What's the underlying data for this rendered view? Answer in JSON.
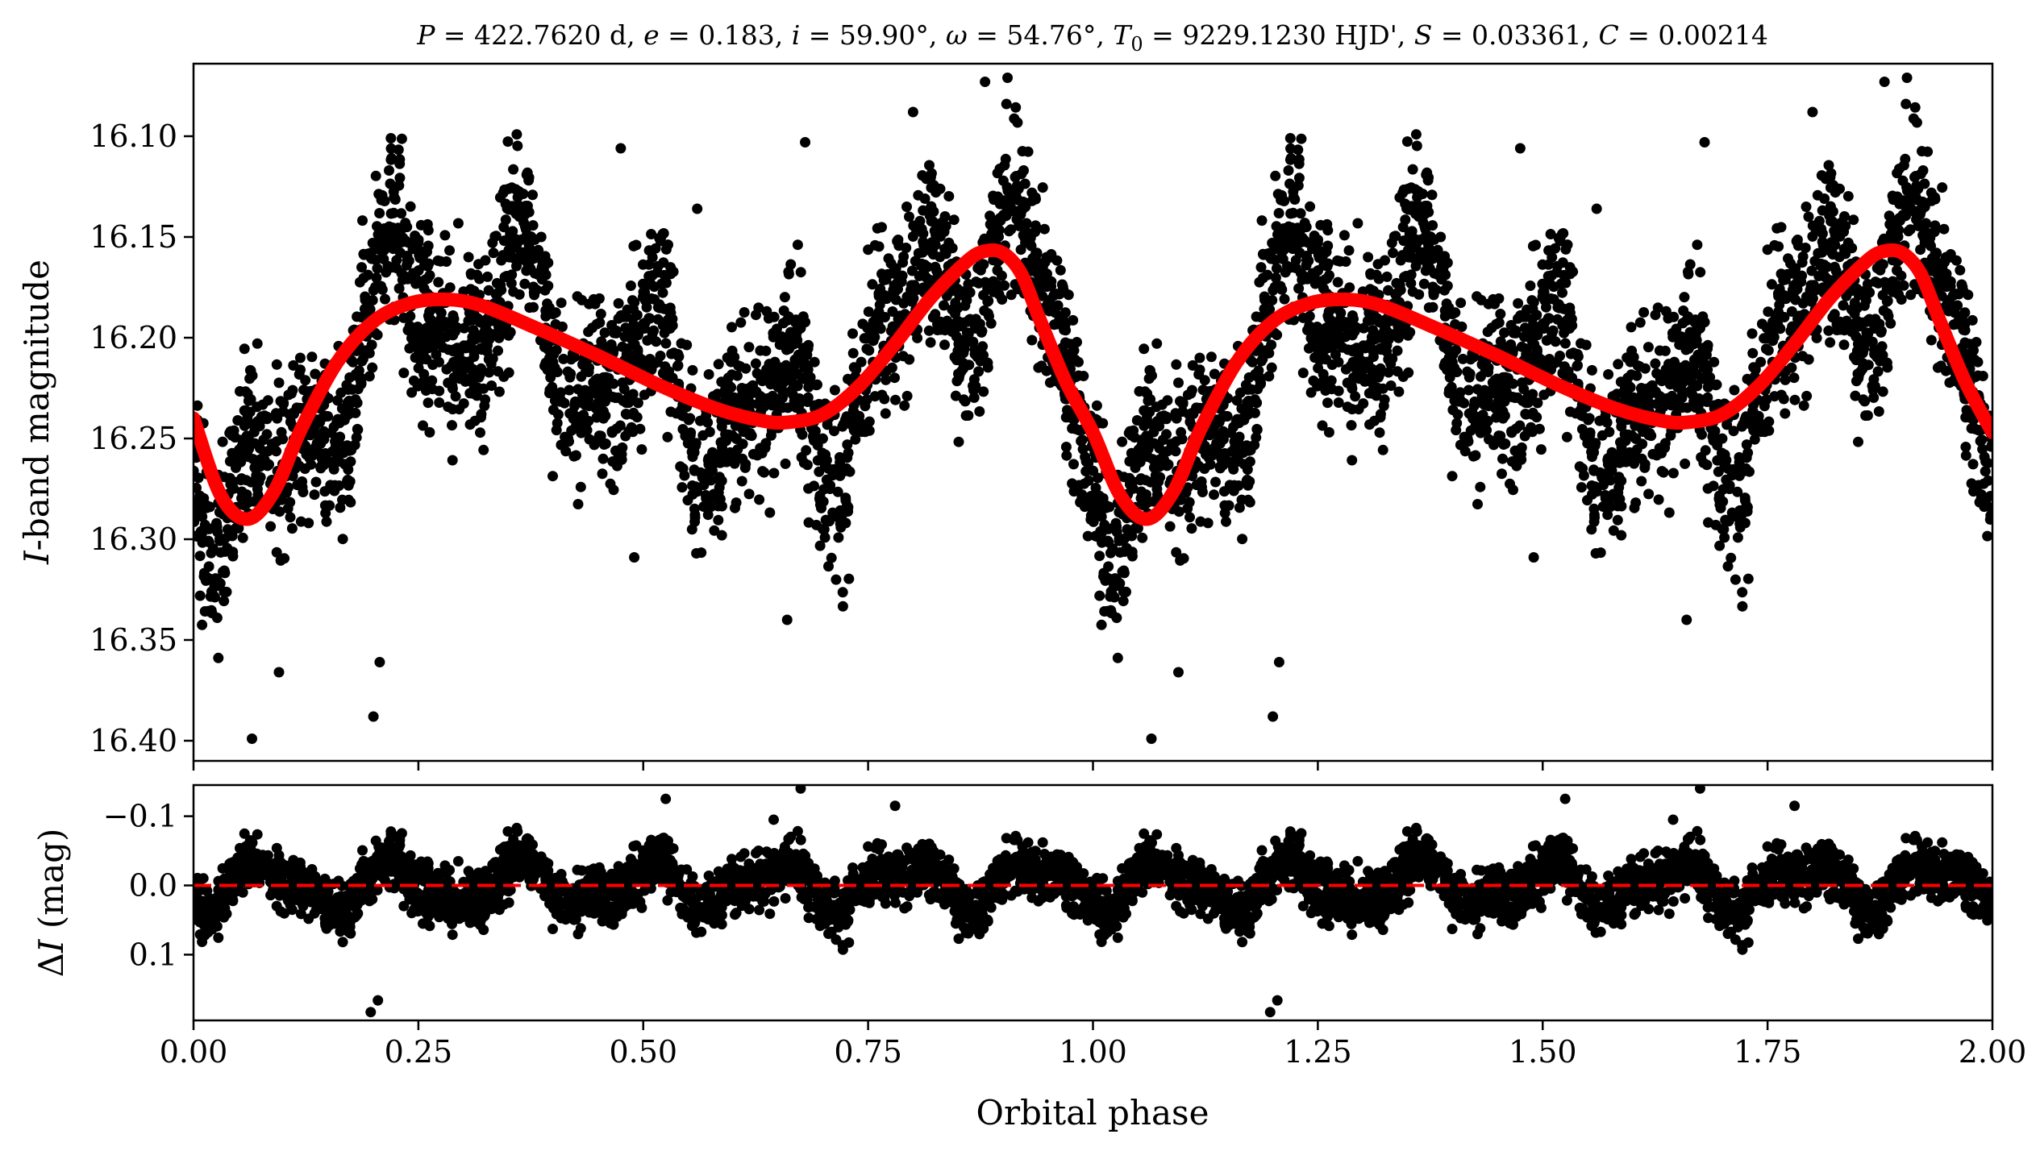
{
  "figure": {
    "title": "P = 422.7620 d, e = 0.183, i = 59.90°, ω = 54.76°, T0 = 9229.1230 HJD', S = 0.03361, C = 0.00214",
    "title_parts": {
      "P_sym": "P",
      "P_val": " = 422.7620 d, ",
      "e_sym": "e",
      "e_val": " = 0.183, ",
      "i_sym": "i",
      "i_val": " = 59.90°, ",
      "w_sym": "ω",
      "w_val": " = 54.76°, ",
      "T_sym": "T",
      "T_sub": "0",
      "T_val": " = 9229.1230 HJD', ",
      "S_sym": "S",
      "S_val": " = 0.03361, ",
      "C_sym": "C",
      "C_val": " = 0.00214"
    }
  },
  "chart_data": [
    {
      "type": "scatter",
      "panel": "top",
      "xlabel": "",
      "ylabel": "I-band magnitude",
      "ylabel_parts": {
        "sym": "I",
        "rest": "-band magnitude"
      },
      "xlim": [
        0.0,
        2.0
      ],
      "ylim": [
        16.41,
        16.064
      ],
      "y_inverted": true,
      "yticks": [
        "16.10",
        "16.15",
        "16.20",
        "16.25",
        "16.30",
        "16.35",
        "16.40"
      ],
      "ytick_values": [
        16.1,
        16.15,
        16.2,
        16.25,
        16.3,
        16.35,
        16.4
      ],
      "colors": {
        "points": "#000000",
        "model": "#ff0000"
      },
      "model_curve": {
        "x": [
          0.0,
          0.03,
          0.06,
          0.09,
          0.12,
          0.16,
          0.2,
          0.24,
          0.28,
          0.32,
          0.38,
          0.45,
          0.52,
          0.58,
          0.63,
          0.66,
          0.7,
          0.74,
          0.78,
          0.82,
          0.86,
          0.88,
          0.9,
          0.92,
          0.94,
          0.97,
          1.0,
          1.03,
          1.06,
          1.09,
          1.12,
          1.16,
          1.2,
          1.24,
          1.28,
          1.32,
          1.38,
          1.45,
          1.52,
          1.58,
          1.63,
          1.66,
          1.7,
          1.74,
          1.78,
          1.82,
          1.86,
          1.88,
          1.9,
          1.92,
          1.94,
          1.97,
          2.0
        ],
        "y": [
          16.24,
          16.278,
          16.29,
          16.276,
          16.245,
          16.212,
          16.192,
          16.183,
          16.181,
          16.184,
          16.195,
          16.209,
          16.224,
          16.235,
          16.241,
          16.242,
          16.238,
          16.224,
          16.203,
          16.18,
          16.162,
          16.157,
          16.158,
          16.168,
          16.19,
          16.222,
          16.247,
          16.278,
          16.29,
          16.276,
          16.245,
          16.212,
          16.192,
          16.183,
          16.181,
          16.184,
          16.195,
          16.209,
          16.224,
          16.235,
          16.241,
          16.242,
          16.238,
          16.224,
          16.203,
          16.18,
          16.162,
          16.157,
          16.158,
          16.168,
          16.19,
          16.222,
          16.247
        ]
      },
      "scatter_summary": {
        "n_points_per_cycle": 2400,
        "phase_repeats": 2,
        "outliers": [
          {
            "x": 0.065,
            "y": 16.399
          },
          {
            "x": 0.2,
            "y": 16.388
          },
          {
            "x": 0.207,
            "y": 16.361
          },
          {
            "x": 0.095,
            "y": 16.366
          },
          {
            "x": 0.88,
            "y": 16.073
          },
          {
            "x": 0.905,
            "y": 16.071
          },
          {
            "x": 0.8,
            "y": 16.088
          },
          {
            "x": 0.68,
            "y": 16.103
          },
          {
            "x": 0.475,
            "y": 16.106
          },
          {
            "x": 0.56,
            "y": 16.136
          },
          {
            "x": 0.66,
            "y": 16.34
          },
          {
            "x": 0.49,
            "y": 16.309
          },
          {
            "x": 1.065,
            "y": 16.399
          },
          {
            "x": 1.2,
            "y": 16.388
          },
          {
            "x": 1.207,
            "y": 16.361
          },
          {
            "x": 1.095,
            "y": 16.366
          },
          {
            "x": 1.88,
            "y": 16.073
          },
          {
            "x": 1.905,
            "y": 16.071
          },
          {
            "x": 1.8,
            "y": 16.088
          },
          {
            "x": 1.68,
            "y": 16.103
          },
          {
            "x": 1.475,
            "y": 16.106
          },
          {
            "x": 1.56,
            "y": 16.136
          },
          {
            "x": 1.66,
            "y": 16.34
          },
          {
            "x": 1.49,
            "y": 16.309
          }
        ]
      }
    },
    {
      "type": "scatter",
      "panel": "bottom",
      "xlabel": "Orbital phase",
      "ylabel": "ΔI (mag)",
      "ylabel_parts": {
        "delta": "Δ",
        "sym": "I",
        "rest": " (mag)"
      },
      "xlim": [
        0.0,
        2.0
      ],
      "ylim": [
        0.195,
        -0.145
      ],
      "y_inverted": true,
      "xticks": [
        "0.00",
        "0.25",
        "0.50",
        "0.75",
        "1.00",
        "1.25",
        "1.50",
        "1.75",
        "2.00"
      ],
      "xtick_values": [
        0.0,
        0.25,
        0.5,
        0.75,
        1.0,
        1.25,
        1.5,
        1.75,
        2.0
      ],
      "yticks": [
        "−0.1",
        "0.0",
        "0.1"
      ],
      "ytick_values": [
        -0.1,
        0.0,
        0.1
      ],
      "zero_line": {
        "y": 0.0,
        "style": "dashed",
        "color": "#ff0000"
      },
      "colors": {
        "points": "#000000"
      },
      "outliers": [
        {
          "x": 0.197,
          "y": 0.183
        },
        {
          "x": 0.205,
          "y": 0.166
        },
        {
          "x": 0.675,
          "y": -0.14
        },
        {
          "x": 0.78,
          "y": -0.115
        },
        {
          "x": 0.525,
          "y": -0.125
        },
        {
          "x": 0.645,
          "y": -0.095
        },
        {
          "x": 1.197,
          "y": 0.183
        },
        {
          "x": 1.205,
          "y": 0.166
        },
        {
          "x": 1.675,
          "y": -0.14
        },
        {
          "x": 1.78,
          "y": -0.115
        },
        {
          "x": 1.525,
          "y": -0.125
        },
        {
          "x": 1.645,
          "y": -0.095
        }
      ]
    }
  ]
}
